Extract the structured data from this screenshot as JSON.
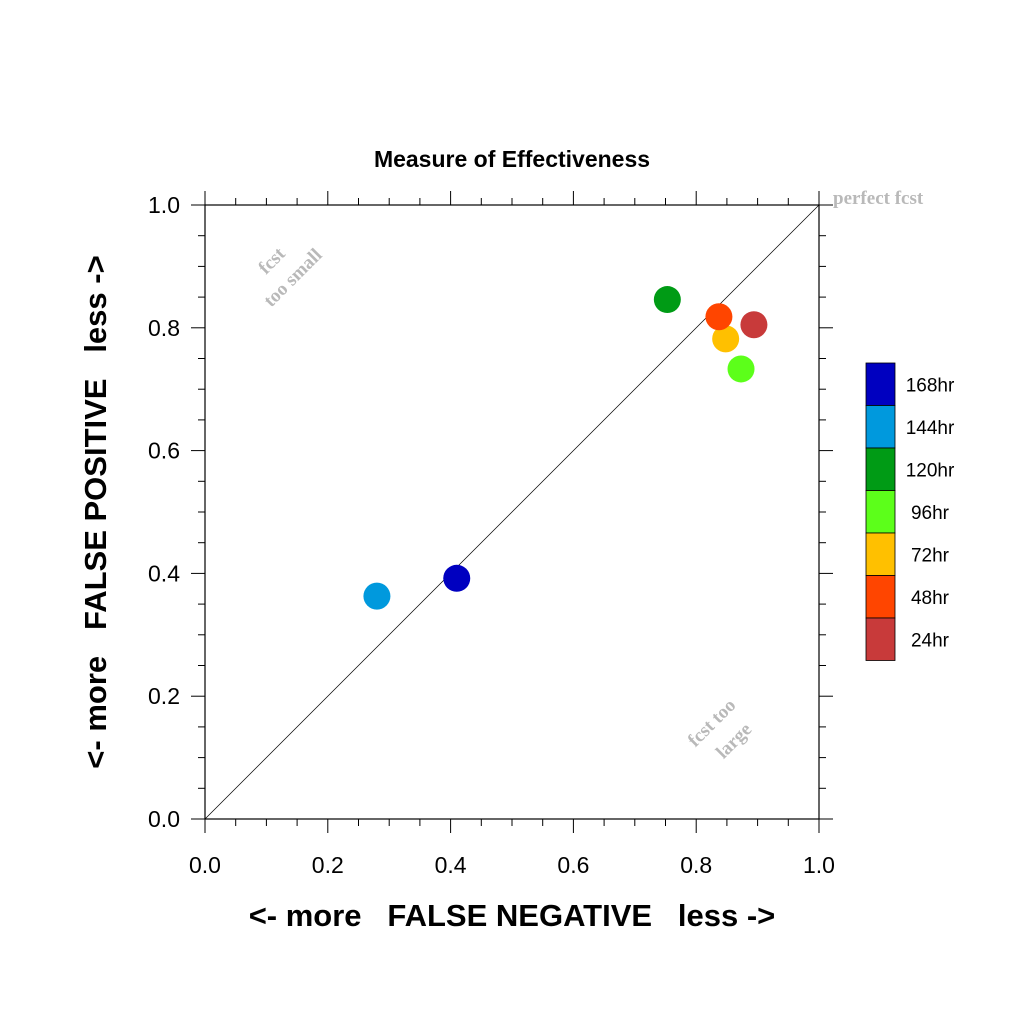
{
  "chart_data": {
    "type": "scatter",
    "title": "Measure of Effectiveness",
    "xlabel": "<- more   FALSE NEGATIVE   less ->",
    "ylabel": "<- more   FALSE POSITIVE   less ->",
    "xlim": [
      0.0,
      1.0
    ],
    "ylim": [
      0.0,
      1.0
    ],
    "xticks": [
      "0.0",
      "0.2",
      "0.4",
      "0.6",
      "0.8",
      "1.0"
    ],
    "yticks": [
      "0.0",
      "0.2",
      "0.4",
      "0.6",
      "0.8",
      "1.0"
    ],
    "grid": false,
    "legend_position": "right",
    "annotations": {
      "perfect": "perfect fcst",
      "too_small_1": "fcst",
      "too_small_2": "too small",
      "too_large_1": "fcst too",
      "too_large_2": "large"
    },
    "series": [
      {
        "name": "168hr",
        "color": "#0000c0",
        "x": 0.41,
        "y": 0.392
      },
      {
        "name": "144hr",
        "color": "#0099dd",
        "x": 0.28,
        "y": 0.363
      },
      {
        "name": "120hr",
        "color": "#009b15",
        "x": 0.753,
        "y": 0.846
      },
      {
        "name": "96hr",
        "color": "#5cff1a",
        "x": 0.873,
        "y": 0.733
      },
      {
        "name": "72hr",
        "color": "#ffc000",
        "x": 0.848,
        "y": 0.782
      },
      {
        "name": "48hr",
        "color": "#ff4500",
        "x": 0.837,
        "y": 0.818
      },
      {
        "name": "24hr",
        "color": "#c83a3a",
        "x": 0.894,
        "y": 0.805
      }
    ]
  }
}
